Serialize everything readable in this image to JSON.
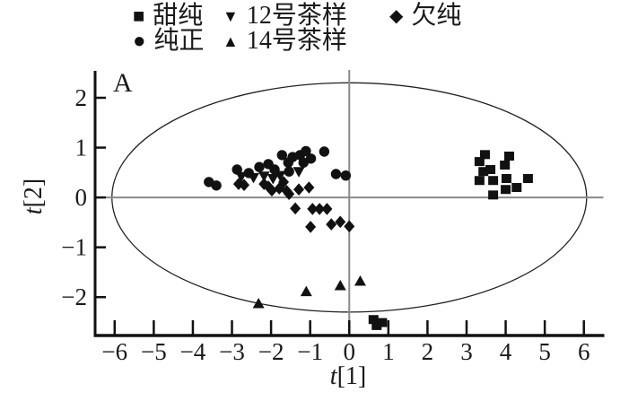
{
  "figure": {
    "panel_label": "A",
    "xlabel_italic": "t",
    "xlabel_rest": "[1]",
    "ylabel_italic": "t",
    "ylabel_rest": "[2]",
    "text_color": "#1a1a1a",
    "marker_color": "#111111",
    "crosshair_color": "#8a8a8a"
  },
  "legend": {
    "rows": [
      [
        {
          "marker": "square",
          "label": "甜纯"
        },
        {
          "marker": "triangle-down",
          "label": "12号茶样"
        },
        {
          "marker": "diamond",
          "label": "欠纯"
        }
      ],
      [
        {
          "marker": "circle",
          "label": "纯正"
        },
        {
          "marker": "triangle-up",
          "label": "14号茶样"
        }
      ]
    ],
    "marker_glyphs": {
      "square": "■",
      "circle": "●",
      "triangle-down": "▼",
      "triangle-up": "▲",
      "diamond": "◆"
    }
  },
  "chart_data": {
    "type": "scatter",
    "title": "",
    "xlabel": "t[1]",
    "ylabel": "t[2]",
    "xlim": [
      -6.5,
      6.5
    ],
    "ylim": [
      -2.77,
      2.54
    ],
    "x_ticks": [
      -6,
      -5,
      -4,
      -3,
      -2,
      -1,
      0,
      1,
      2,
      3,
      4,
      5,
      6
    ],
    "y_ticks": [
      -2,
      -1,
      0,
      1,
      2
    ],
    "grid": false,
    "legend_position": "top",
    "crosshair_at_zero": true,
    "hotelling_ellipse": {
      "cx": 0,
      "cy": 0,
      "rx": 6.07,
      "ry": 2.3
    },
    "series": [
      {
        "name": "甜纯",
        "marker": "square",
        "points": [
          [
            3.47,
            0.86
          ],
          [
            3.33,
            0.72
          ],
          [
            4.09,
            0.83
          ],
          [
            3.98,
            0.65
          ],
          [
            3.43,
            0.52
          ],
          [
            3.61,
            0.56
          ],
          [
            3.33,
            0.34
          ],
          [
            3.68,
            0.34
          ],
          [
            4.02,
            0.38
          ],
          [
            4.57,
            0.38
          ],
          [
            4.28,
            0.2
          ],
          [
            4.0,
            0.16
          ],
          [
            3.68,
            0.05
          ],
          [
            0.62,
            -2.45
          ],
          [
            0.84,
            -2.51
          ],
          [
            0.7,
            -2.57
          ]
        ]
      },
      {
        "name": "纯正",
        "marker": "circle",
        "points": [
          [
            -3.59,
            0.31
          ],
          [
            -3.4,
            0.24
          ],
          [
            -2.87,
            0.56
          ],
          [
            -2.57,
            0.49
          ],
          [
            -2.3,
            0.61
          ],
          [
            -2.07,
            0.67
          ],
          [
            -1.91,
            0.56
          ],
          [
            -1.72,
            0.85
          ],
          [
            -1.56,
            0.7
          ],
          [
            -1.54,
            0.52
          ],
          [
            -1.45,
            0.81
          ],
          [
            -1.26,
            0.85
          ],
          [
            -1.11,
            0.93
          ],
          [
            -1.17,
            0.7
          ],
          [
            -0.98,
            0.78
          ],
          [
            -0.64,
            0.92
          ],
          [
            -0.34,
            0.47
          ],
          [
            -0.09,
            0.44
          ]
        ]
      },
      {
        "name": "12号茶样",
        "marker": "triangle-down",
        "points": [
          [
            -2.76,
            0.42
          ],
          [
            -2.45,
            0.4
          ],
          [
            -2.18,
            0.43
          ],
          [
            -1.95,
            0.38
          ],
          [
            -1.77,
            0.44
          ],
          [
            -1.29,
            0.52
          ]
        ]
      },
      {
        "name": "14号茶样",
        "marker": "triangle-up",
        "points": [
          [
            -2.32,
            -2.13
          ],
          [
            -1.1,
            -1.89
          ],
          [
            -0.23,
            -1.77
          ],
          [
            0.28,
            -1.68
          ]
        ]
      },
      {
        "name": "欠纯",
        "marker": "diamond",
        "points": [
          [
            -2.83,
            0.27
          ],
          [
            -2.69,
            0.25
          ],
          [
            -2.18,
            0.27
          ],
          [
            -2.07,
            0.22
          ],
          [
            -1.98,
            0.14
          ],
          [
            -1.79,
            0.18
          ],
          [
            -1.68,
            0.31
          ],
          [
            -1.6,
            0.13
          ],
          [
            -1.54,
            0.07
          ],
          [
            -1.29,
            0.16
          ],
          [
            -1.03,
            0.2
          ],
          [
            -1.38,
            -0.22
          ],
          [
            -0.94,
            -0.23
          ],
          [
            -0.76,
            -0.23
          ],
          [
            -0.57,
            -0.23
          ],
          [
            -0.99,
            -0.59
          ],
          [
            -0.46,
            -0.54
          ],
          [
            -0.23,
            -0.49
          ],
          [
            0.0,
            -0.58
          ]
        ]
      }
    ]
  }
}
